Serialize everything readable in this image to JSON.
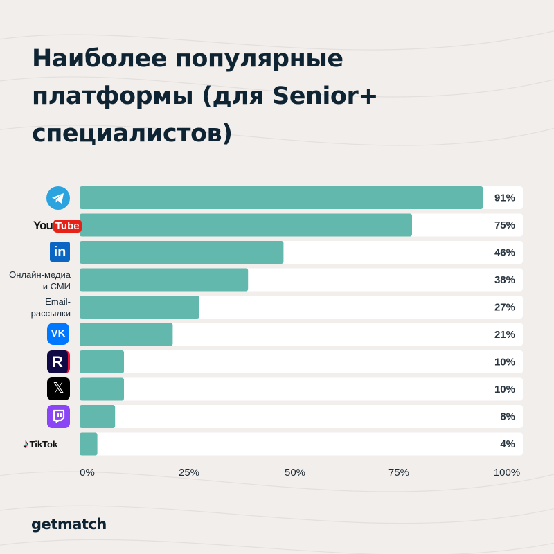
{
  "title_lines": [
    "Наиболее популярные",
    "платформы (для Senior+",
    "специалистов)"
  ],
  "brand": "getmatch",
  "colors": {
    "bar": "#62b8ad",
    "track": "#ffffff",
    "text": "#0f2433",
    "background": "#f2eeec"
  },
  "chart_data": {
    "type": "bar",
    "orientation": "horizontal",
    "categories": [
      {
        "icon": "telegram-icon"
      },
      {
        "icon": "youtube-logo",
        "logo_text": "YouTube"
      },
      {
        "icon": "linkedin-icon",
        "logo_text": "in"
      },
      {
        "label_lines": [
          "Онлайн-медиа",
          "и СМИ"
        ]
      },
      {
        "label_lines": [
          "Email-",
          "рассылки"
        ]
      },
      {
        "icon": "vk-icon",
        "logo_text": "VK"
      },
      {
        "icon": "rutube-icon",
        "logo_text": "R"
      },
      {
        "icon": "x-icon",
        "logo_text": "𝕏"
      },
      {
        "icon": "twitch-icon"
      },
      {
        "icon": "tiktok-logo",
        "logo_text": "TikTok"
      }
    ],
    "values": [
      91,
      75,
      46,
      38,
      27,
      21,
      10,
      10,
      8,
      4
    ],
    "value_labels": [
      "91%",
      "75%",
      "46%",
      "38%",
      "27%",
      "21%",
      "10%",
      "10%",
      "8%",
      "4%"
    ],
    "x_ticks": [
      "0%",
      "25%",
      "50%",
      "75%",
      "100%"
    ],
    "xlim": [
      0,
      100
    ],
    "grid": false,
    "legend": "none"
  }
}
